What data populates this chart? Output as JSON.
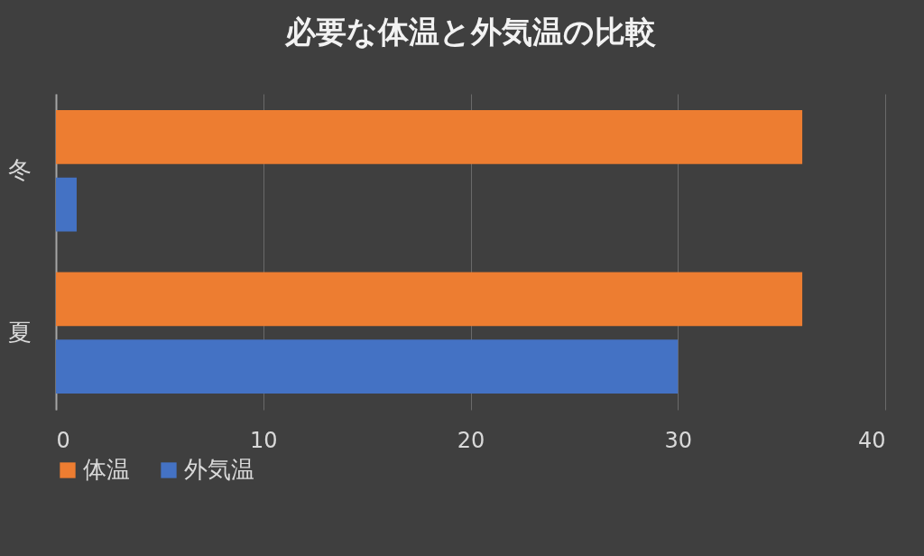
{
  "chart_data": {
    "type": "bar",
    "orientation": "horizontal",
    "title": "必要な体温と外気温の比較",
    "categories": [
      "冬",
      "夏"
    ],
    "series": [
      {
        "name": "体温",
        "color": "#ed7d31",
        "values": [
          36,
          36
        ]
      },
      {
        "name": "外気温",
        "color": "#4472c4",
        "values": [
          1,
          30
        ]
      }
    ],
    "xlim": [
      0,
      40
    ],
    "xticks": [
      0,
      10,
      20,
      30,
      40
    ],
    "grid": "x",
    "legend": "bottom"
  }
}
